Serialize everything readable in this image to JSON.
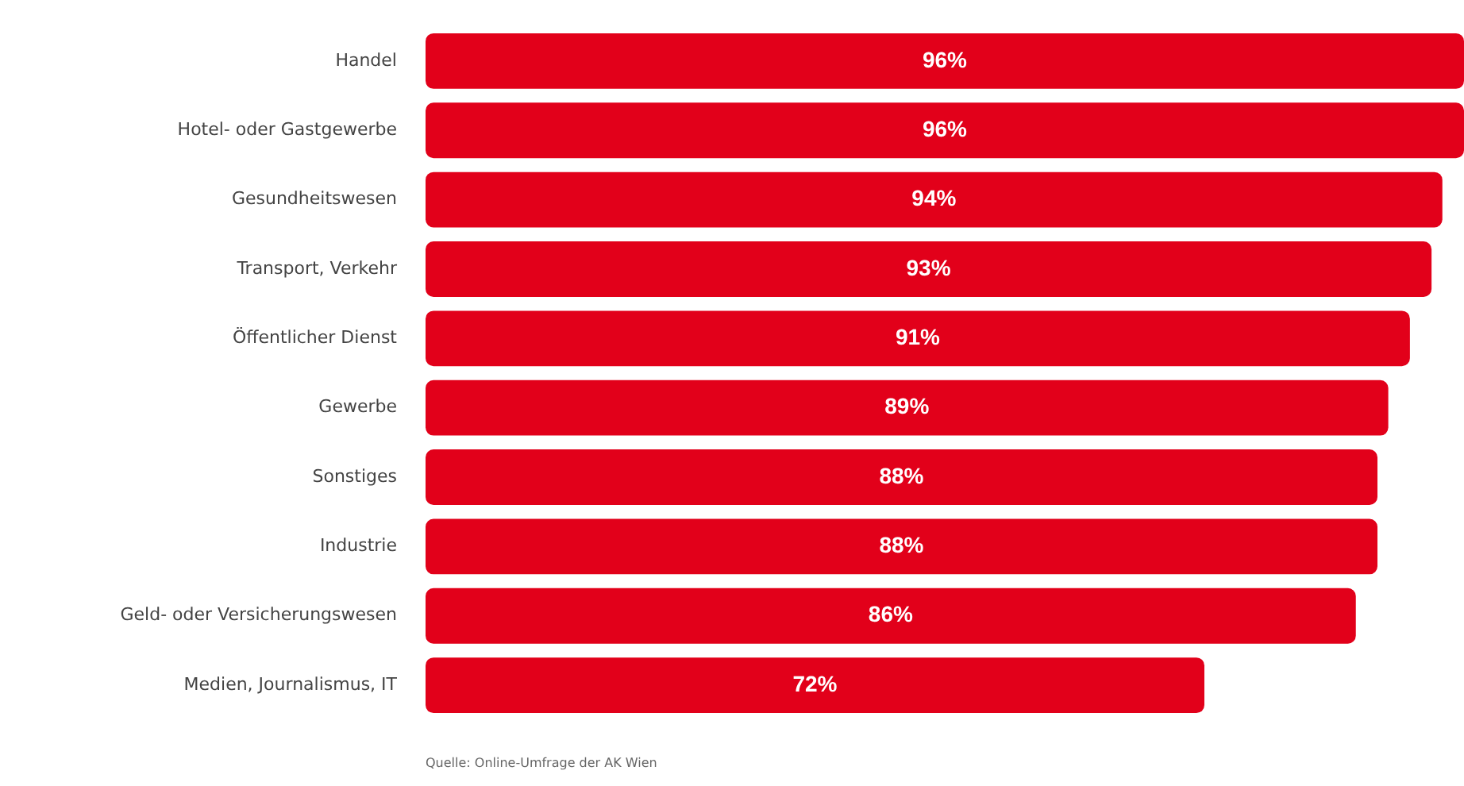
{
  "chart_data": {
    "type": "bar",
    "orientation": "horizontal",
    "categories": [
      "Handel",
      "Hotel- oder Gastgewerbe",
      "Gesundheitswesen",
      "Transport, Verkehr",
      "Öffentlicher Dienst",
      "Gewerbe",
      "Sonstiges",
      "Industrie",
      "Geld- oder Versicherungswesen",
      "Medien, Journalismus, IT"
    ],
    "values": [
      96,
      96,
      94,
      93,
      91,
      89,
      88,
      88,
      86,
      72
    ],
    "value_labels": [
      "96%",
      "96%",
      "94%",
      "93%",
      "91%",
      "89%",
      "88%",
      "88%",
      "86%",
      "72%"
    ],
    "color": "#e2001a",
    "xlim": [
      0,
      96
    ],
    "tick_labels": "y",
    "legend": false,
    "annotations": [
      "Quelle: Online-Umfrage der AK Wien"
    ]
  }
}
